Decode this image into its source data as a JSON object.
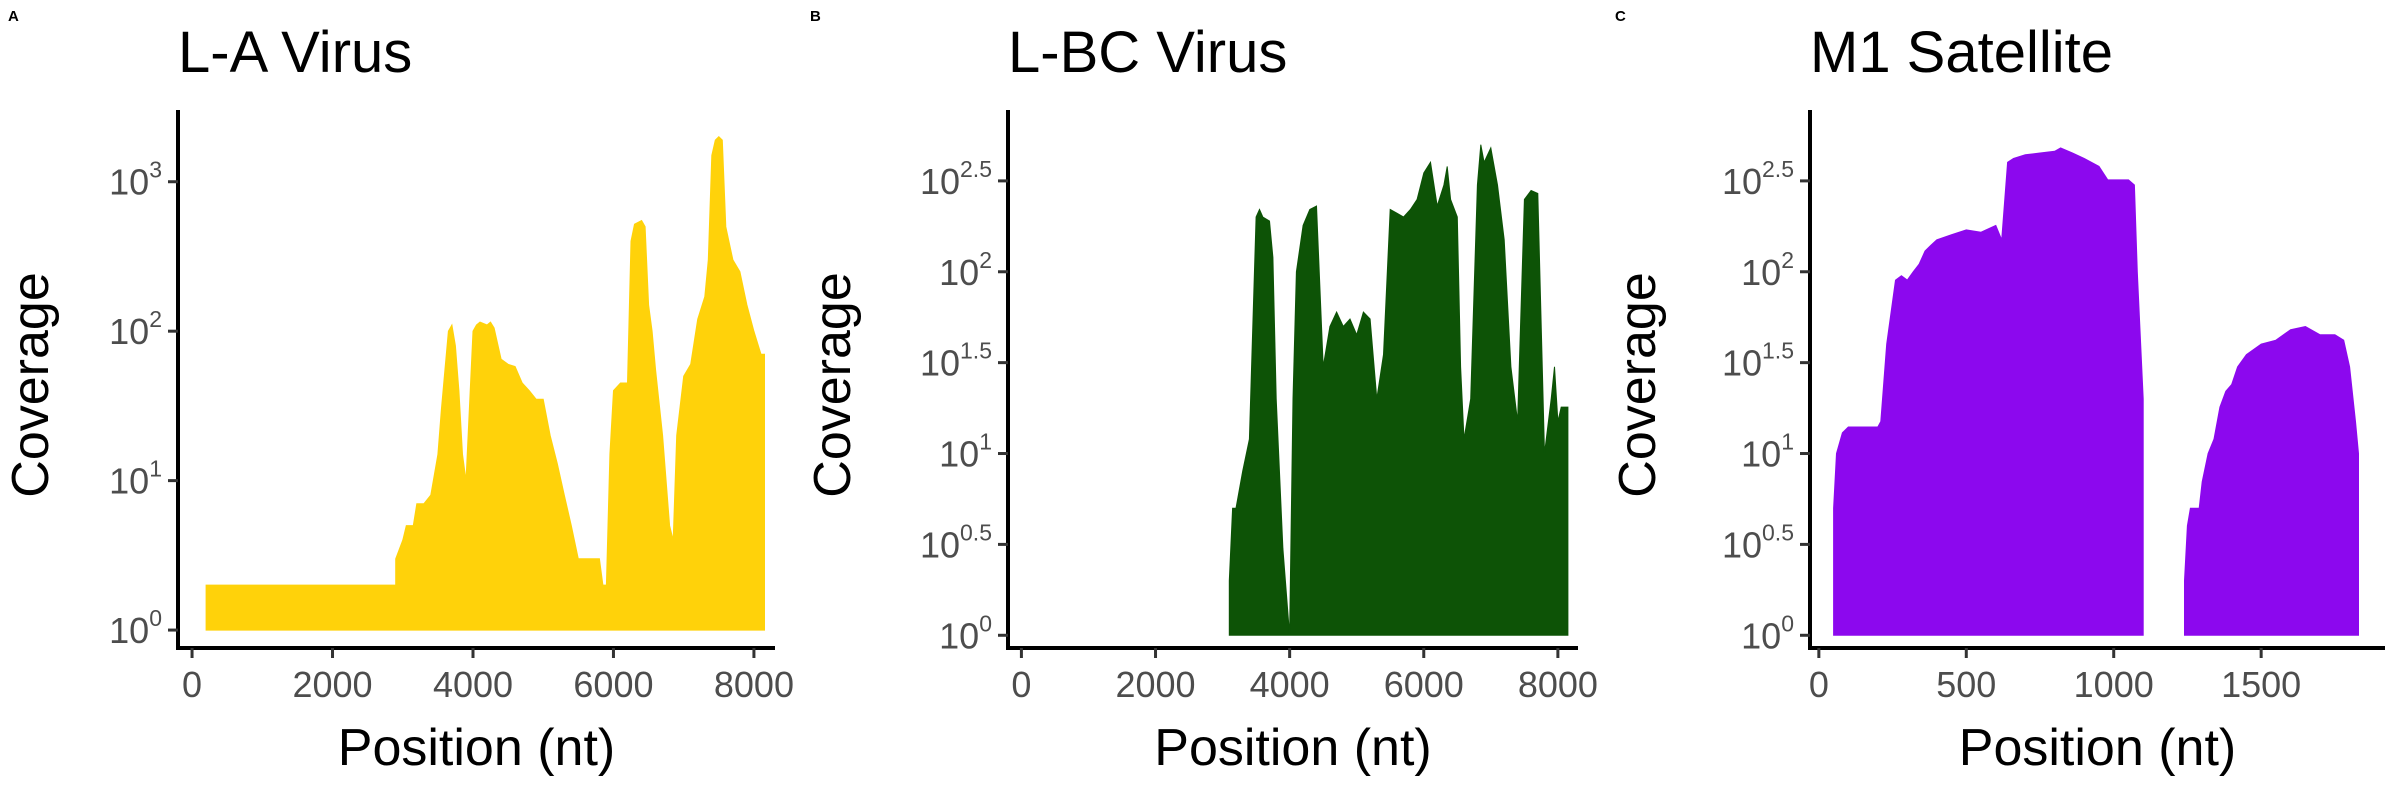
{
  "chart_data": [
    {
      "type": "area",
      "panel": "A",
      "title": "L-A Virus",
      "xlabel": "Position (nt)",
      "ylabel": "Coverage",
      "y_scale": "log10",
      "xlim": [
        -200,
        8300
      ],
      "ylim_log10": [
        -0.12,
        3.48
      ],
      "x_ticks": [
        {
          "value": 0,
          "label": "0"
        },
        {
          "value": 2000,
          "label": "2000"
        },
        {
          "value": 4000,
          "label": "4000"
        },
        {
          "value": 6000,
          "label": "6000"
        },
        {
          "value": 8000,
          "label": "8000"
        }
      ],
      "y_ticks": [
        {
          "value": 0,
          "base": "10",
          "exp": "0"
        },
        {
          "value": 1,
          "base": "10",
          "exp": "1"
        },
        {
          "value": 2,
          "base": "10",
          "exp": "2"
        },
        {
          "value": 3,
          "base": "10",
          "exp": "3"
        }
      ],
      "color": "#FFD20A",
      "x": [
        200,
        2900,
        2900,
        3000,
        3050,
        3150,
        3200,
        3300,
        3400,
        3500,
        3550,
        3600,
        3650,
        3700,
        3750,
        3800,
        3850,
        3900,
        4000,
        4050,
        4100,
        4200,
        4250,
        4300,
        4400,
        4500,
        4600,
        4700,
        4800,
        4900,
        5000,
        5100,
        5200,
        5300,
        5400,
        5500,
        5600,
        5700,
        5800,
        5850,
        5900,
        5950,
        6000,
        6100,
        6200,
        6250,
        6300,
        6400,
        6450,
        6500,
        6550,
        6600,
        6700,
        6800,
        6850,
        6900,
        7000,
        7100,
        7200,
        7300,
        7350,
        7400,
        7450,
        7500,
        7550,
        7600,
        7700,
        7800,
        7900,
        8000,
        8100,
        8150
      ],
      "values": [
        2,
        2,
        3,
        4,
        5,
        5,
        7,
        7,
        8,
        15,
        30,
        55,
        100,
        110,
        80,
        40,
        15,
        10,
        100,
        110,
        115,
        110,
        115,
        105,
        65,
        60,
        58,
        45,
        40,
        35,
        35,
        20,
        13,
        8,
        5,
        3,
        3,
        3,
        3,
        2,
        2,
        15,
        40,
        45,
        45,
        400,
        520,
        550,
        500,
        150,
        100,
        55,
        20,
        5,
        4,
        20,
        50,
        60,
        120,
        170,
        300,
        1500,
        1900,
        2000,
        1900,
        500,
        300,
        250,
        150,
        100,
        70,
        70
      ]
    },
    {
      "type": "area",
      "panel": "B",
      "title": "L-BC Virus",
      "xlabel": "Position (nt)",
      "ylabel": "Coverage",
      "y_scale": "log10",
      "xlim": [
        -200,
        8300
      ],
      "ylim_log10": [
        -0.07,
        2.89
      ],
      "x_ticks": [
        {
          "value": 0,
          "label": "0"
        },
        {
          "value": 2000,
          "label": "2000"
        },
        {
          "value": 4000,
          "label": "4000"
        },
        {
          "value": 6000,
          "label": "6000"
        },
        {
          "value": 8000,
          "label": "8000"
        }
      ],
      "y_ticks": [
        {
          "value": 0,
          "base": "10",
          "exp": "0"
        },
        {
          "value": 0.5,
          "base": "10",
          "exp": "0.5"
        },
        {
          "value": 1,
          "base": "10",
          "exp": "1"
        },
        {
          "value": 1.5,
          "base": "10",
          "exp": "1.5"
        },
        {
          "value": 2,
          "base": "10",
          "exp": "2"
        },
        {
          "value": 2.5,
          "base": "10",
          "exp": "2.5"
        }
      ],
      "color": "#0D5306",
      "x": [
        3100,
        3150,
        3200,
        3300,
        3400,
        3500,
        3550,
        3600,
        3700,
        3750,
        3800,
        3900,
        4000,
        4050,
        4100,
        4200,
        4300,
        4400,
        4500,
        4600,
        4700,
        4800,
        4900,
        5000,
        5100,
        5200,
        5300,
        5400,
        5500,
        5600,
        5700,
        5800,
        5900,
        6000,
        6100,
        6200,
        6300,
        6350,
        6400,
        6500,
        6550,
        6600,
        6700,
        6800,
        6850,
        6900,
        7000,
        7100,
        7200,
        7300,
        7400,
        7500,
        7600,
        7700,
        7800,
        7900,
        7950,
        8000,
        8050,
        8100,
        8150
      ],
      "values": [
        2,
        5,
        5,
        8,
        12,
        200,
        220,
        200,
        190,
        120,
        20,
        3,
        1,
        20,
        100,
        180,
        220,
        230,
        30,
        50,
        60,
        50,
        55,
        45,
        60,
        55,
        20,
        35,
        220,
        210,
        200,
        220,
        250,
        350,
        400,
        230,
        300,
        380,
        250,
        200,
        30,
        12,
        20,
        300,
        500,
        400,
        480,
        300,
        150,
        30,
        15,
        250,
        280,
        270,
        10,
        20,
        30,
        15,
        18,
        18,
        18
      ]
    },
    {
      "type": "area",
      "panel": "C",
      "title": "M1 Satellite",
      "xlabel": "Position (nt)",
      "ylabel": "Coverage",
      "y_scale": "log10",
      "xlim": [
        -30,
        1920
      ],
      "ylim_log10": [
        -0.07,
        2.89
      ],
      "x_ticks": [
        {
          "value": 0,
          "label": "0"
        },
        {
          "value": 500,
          "label": "500"
        },
        {
          "value": 1000,
          "label": "1000"
        },
        {
          "value": 1500,
          "label": "1500"
        }
      ],
      "y_ticks": [
        {
          "value": 0,
          "base": "10",
          "exp": "0"
        },
        {
          "value": 0.5,
          "base": "10",
          "exp": "0.5"
        },
        {
          "value": 1,
          "base": "10",
          "exp": "1"
        },
        {
          "value": 1.5,
          "base": "10",
          "exp": "1.5"
        },
        {
          "value": 2,
          "base": "10",
          "exp": "2"
        },
        {
          "value": 2.5,
          "base": "10",
          "exp": "2.5"
        }
      ],
      "color": "#8C08EE",
      "segments": [
        {
          "x": [
            50,
            60,
            80,
            100,
            120,
            180,
            200,
            210,
            230,
            260,
            280,
            300,
            320,
            340,
            360,
            380,
            400,
            450,
            500,
            550,
            600,
            620,
            640,
            660,
            700,
            750,
            800,
            820,
            860,
            900,
            950,
            980,
            1000,
            1050,
            1070,
            1080,
            1100
          ],
          "values": [
            5,
            10,
            13,
            14,
            14,
            14,
            14,
            15,
            40,
            90,
            95,
            90,
            100,
            110,
            130,
            140,
            150,
            160,
            170,
            165,
            180,
            150,
            400,
            420,
            440,
            450,
            460,
            480,
            450,
            420,
            380,
            320,
            320,
            320,
            300,
            100,
            20
          ]
        },
        {
          "x": [
            1240,
            1250,
            1260,
            1270,
            1280,
            1290,
            1300,
            1320,
            1340,
            1360,
            1380,
            1400,
            1420,
            1450,
            1500,
            1550,
            1600,
            1650,
            1700,
            1750,
            1780,
            1800,
            1820,
            1830
          ],
          "values": [
            2,
            4,
            5,
            5,
            5,
            5,
            7,
            10,
            12,
            18,
            22,
            24,
            30,
            35,
            40,
            42,
            48,
            50,
            45,
            45,
            42,
            30,
            15,
            10
          ]
        }
      ]
    }
  ]
}
